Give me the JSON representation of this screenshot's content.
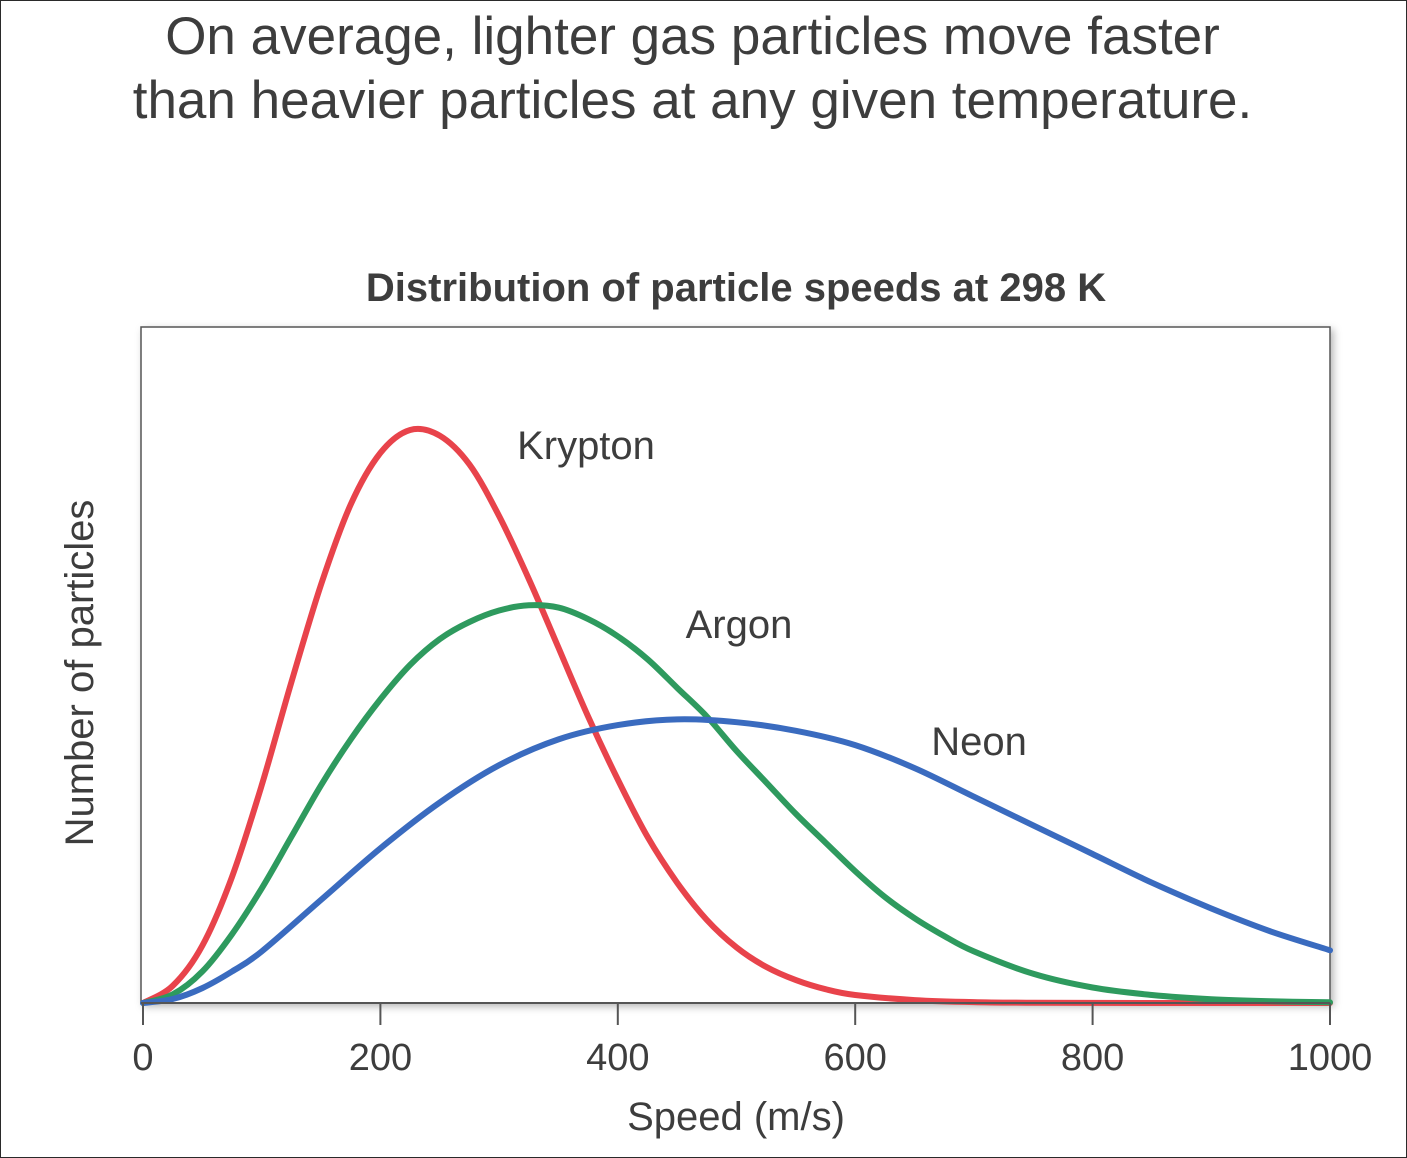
{
  "slide": {
    "headline_line1": "On average, lighter gas particles move faster",
    "headline_line2": "than heavier particles at any given temperature."
  },
  "chart_data": {
    "type": "line",
    "title": "Distribution of particle speeds at 298 K",
    "xlabel": "Speed (m/s)",
    "ylabel": "Number of particles",
    "xlim": [
      0,
      1000
    ],
    "ylim": [
      0,
      1.0
    ],
    "xticks": [
      0,
      200,
      400,
      600,
      800,
      1000
    ],
    "yticks": [],
    "grid": false,
    "legend": "inline labels",
    "series": [
      {
        "name": "Krypton",
        "color": "#e8434b",
        "x": [
          0,
          25,
          50,
          75,
          100,
          125,
          150,
          175,
          200,
          225,
          250,
          275,
          300,
          325,
          350,
          375,
          400,
          425,
          450,
          475,
          500,
          525,
          550,
          575,
          600,
          650,
          700,
          750,
          800,
          850,
          900,
          950,
          1000
        ],
        "y": [
          0,
          0.03,
          0.1,
          0.22,
          0.38,
          0.56,
          0.73,
          0.87,
          0.96,
          1.0,
          0.99,
          0.94,
          0.85,
          0.74,
          0.62,
          0.5,
          0.39,
          0.29,
          0.21,
          0.145,
          0.097,
          0.063,
          0.04,
          0.024,
          0.014,
          0.005,
          0.0015,
          0.0004,
          0.0001,
          0,
          0,
          0,
          0
        ]
      },
      {
        "name": "Argon",
        "color": "#2e9a5e",
        "x": [
          0,
          25,
          50,
          75,
          100,
          125,
          150,
          175,
          200,
          225,
          250,
          275,
          300,
          325,
          350,
          375,
          400,
          425,
          450,
          475,
          500,
          525,
          550,
          575,
          600,
          625,
          650,
          675,
          700,
          750,
          800,
          850,
          900,
          950,
          1000
        ],
        "y": [
          0,
          0.015,
          0.055,
          0.12,
          0.2,
          0.29,
          0.38,
          0.46,
          0.53,
          0.59,
          0.635,
          0.665,
          0.685,
          0.694,
          0.69,
          0.67,
          0.64,
          0.6,
          0.55,
          0.5,
          0.44,
          0.385,
          0.33,
          0.28,
          0.23,
          0.185,
          0.148,
          0.117,
          0.09,
          0.051,
          0.027,
          0.014,
          0.0065,
          0.003,
          0.0013
        ]
      },
      {
        "name": "Neon",
        "color": "#3a6bbf",
        "x": [
          0,
          25,
          50,
          75,
          100,
          150,
          200,
          250,
          300,
          350,
          400,
          450,
          500,
          550,
          600,
          650,
          700,
          750,
          800,
          850,
          900,
          950,
          1000
        ],
        "y": [
          0,
          0.007,
          0.026,
          0.055,
          0.09,
          0.18,
          0.27,
          0.35,
          0.415,
          0.46,
          0.485,
          0.495,
          0.49,
          0.475,
          0.45,
          0.41,
          0.36,
          0.31,
          0.26,
          0.21,
          0.165,
          0.125,
          0.092
        ]
      }
    ]
  }
}
